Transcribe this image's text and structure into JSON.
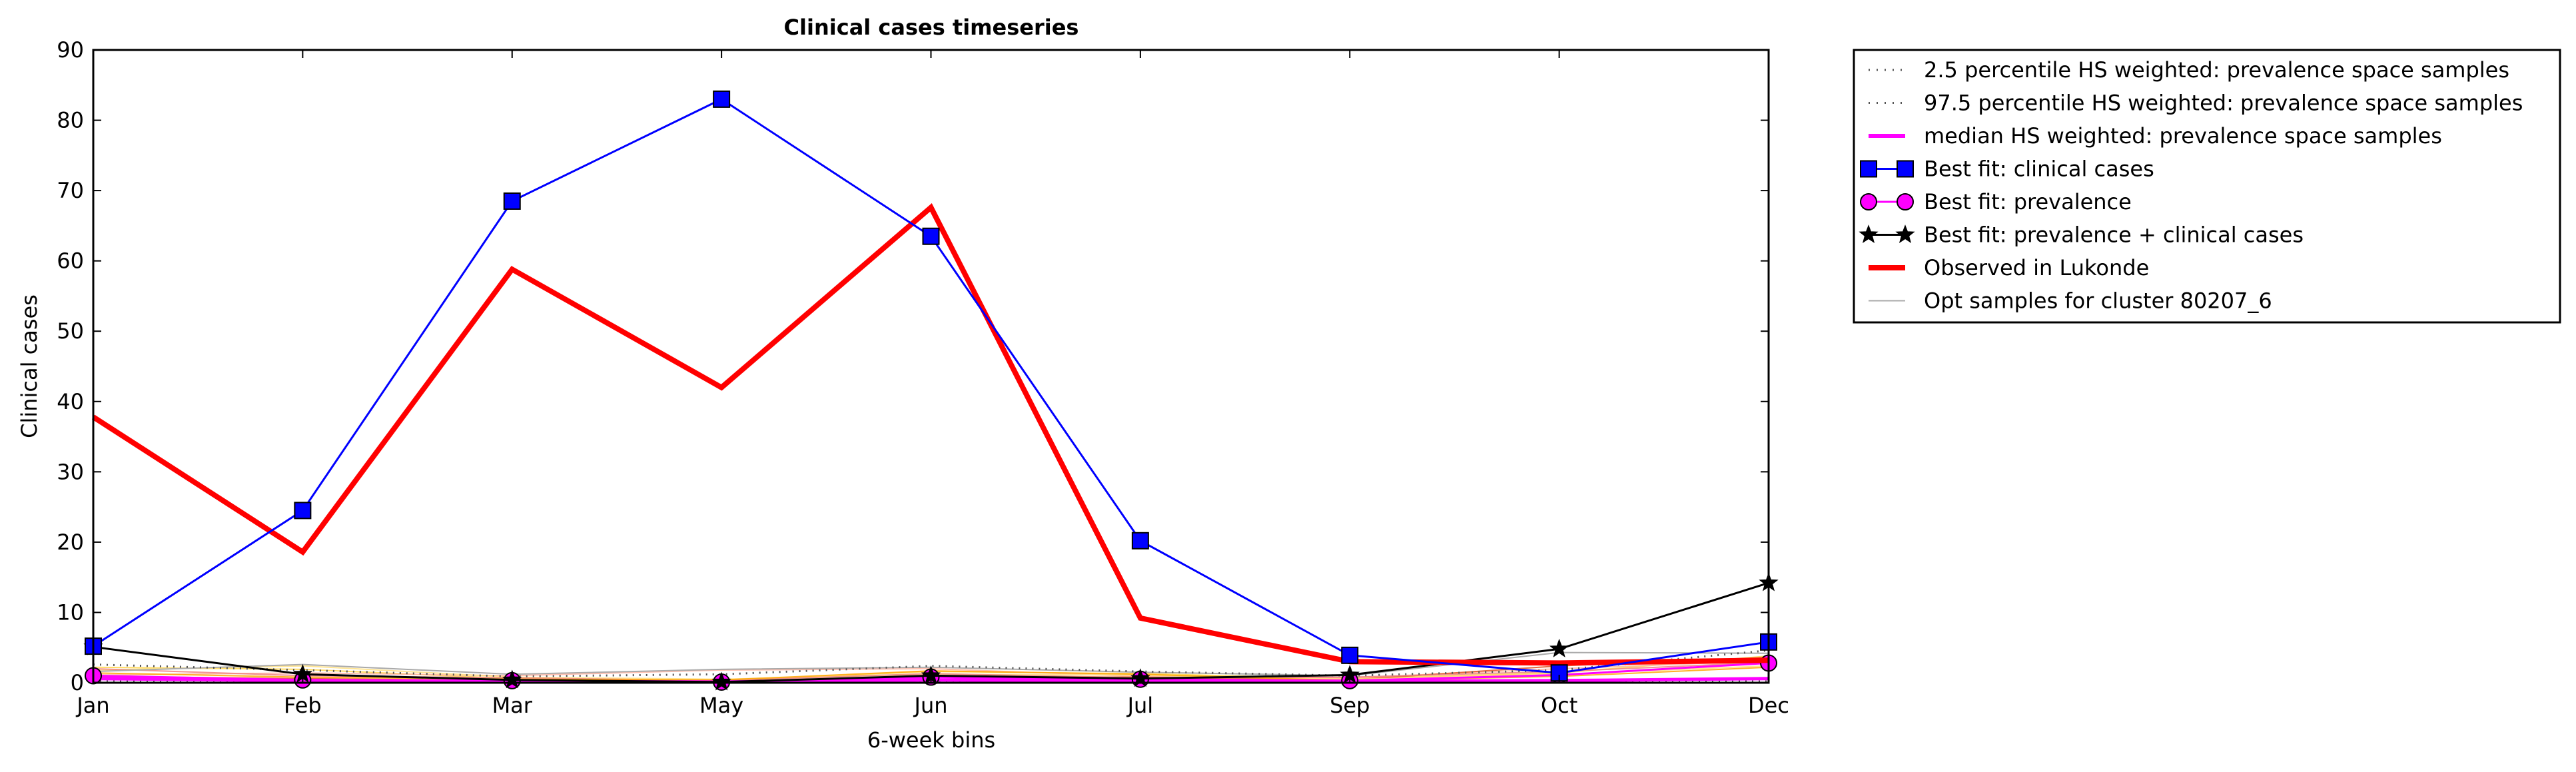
{
  "chart_data": {
    "type": "line",
    "title": "Clinical cases timeseries",
    "xlabel": "6-week bins",
    "ylabel": "Clinical cases",
    "categories": [
      "Jan",
      "Feb",
      "Mar",
      "May",
      "Jun",
      "Jul",
      "Sep",
      "Oct",
      "Dec"
    ],
    "ylim": [
      0,
      90
    ],
    "yticks": [
      0,
      10,
      20,
      30,
      40,
      50,
      60,
      70,
      80,
      90
    ],
    "grid": false,
    "legend_position": "outside-top-right",
    "series": [
      {
        "name": "2.5 percentile HS weighted: prevalence space samples",
        "style": "dotted",
        "color": "#555555",
        "values": [
          0.3,
          0.2,
          0.2,
          0.1,
          0.2,
          0.2,
          0.1,
          0.1,
          0.2
        ]
      },
      {
        "name": "97.5 percentile HS weighted: prevalence space samples",
        "style": "dotted",
        "color": "#555555",
        "values": [
          2.6,
          1.8,
          0.9,
          1.2,
          2.4,
          1.6,
          1.0,
          1.8,
          4.6
        ]
      },
      {
        "name": "median HS weighted: prevalence space samples",
        "style": "solid",
        "color": "#ff00ff",
        "values": [
          0.6,
          0.3,
          0.2,
          0.1,
          0.4,
          0.3,
          0.2,
          0.3,
          0.6
        ]
      },
      {
        "name": "Best fit: clinical cases",
        "style": "solid",
        "marker": "square",
        "color": "#0000ff",
        "values": [
          5.2,
          24.5,
          68.5,
          83.0,
          63.5,
          20.2,
          3.9,
          1.4,
          5.8
        ]
      },
      {
        "name": "Best fit: prevalence",
        "style": "solid",
        "marker": "circle",
        "color": "#ff00ff",
        "values": [
          1.0,
          0.4,
          0.3,
          0.1,
          0.8,
          0.5,
          0.3,
          1.1,
          2.8
        ]
      },
      {
        "name": "Best fit: prevalence + clinical cases",
        "style": "solid",
        "marker": "star",
        "color": "#000000",
        "values": [
          5.1,
          1.2,
          0.4,
          0.1,
          1.0,
          0.6,
          1.1,
          4.8,
          14.2
        ]
      },
      {
        "name": "Observed in Lukonde",
        "style": "solid",
        "color": "#ff0000",
        "values": [
          37.8,
          18.6,
          58.8,
          42.0,
          67.6,
          9.2,
          3.0,
          2.8,
          3.2
        ]
      },
      {
        "name": "Opt samples for cluster 80207_6",
        "style": "solid",
        "color": "#aaaaaa",
        "values": [
          1.6,
          2.6,
          1.2,
          1.9,
          2.2,
          1.5,
          1.0,
          4.3,
          4.2
        ]
      }
    ],
    "opt_samples": [
      {
        "color": "#ffd54a",
        "values": [
          2.2,
          1.9,
          0.6,
          0.3,
          1.6,
          1.3,
          0.6,
          1.4,
          3.8
        ]
      },
      {
        "color": "#ffb3a0",
        "values": [
          1.1,
          1.4,
          1.0,
          1.8,
          2.0,
          0.9,
          0.7,
          2.0,
          3.1
        ]
      },
      {
        "color": "#e05020",
        "values": [
          0.9,
          0.6,
          0.3,
          0.2,
          0.9,
          0.8,
          0.4,
          2.4,
          3.6
        ]
      },
      {
        "color": "#ffe080",
        "values": [
          1.8,
          2.4,
          0.8,
          0.5,
          1.2,
          1.1,
          0.5,
          1.2,
          2.4
        ]
      },
      {
        "color": "#f08080",
        "values": [
          2.0,
          1.0,
          0.7,
          0.3,
          1.3,
          0.7,
          0.8,
          1.6,
          2.9
        ]
      },
      {
        "color": "#ffa500",
        "values": [
          1.4,
          0.8,
          0.5,
          0.4,
          1.7,
          1.2,
          0.3,
          0.9,
          2.2
        ]
      }
    ]
  }
}
